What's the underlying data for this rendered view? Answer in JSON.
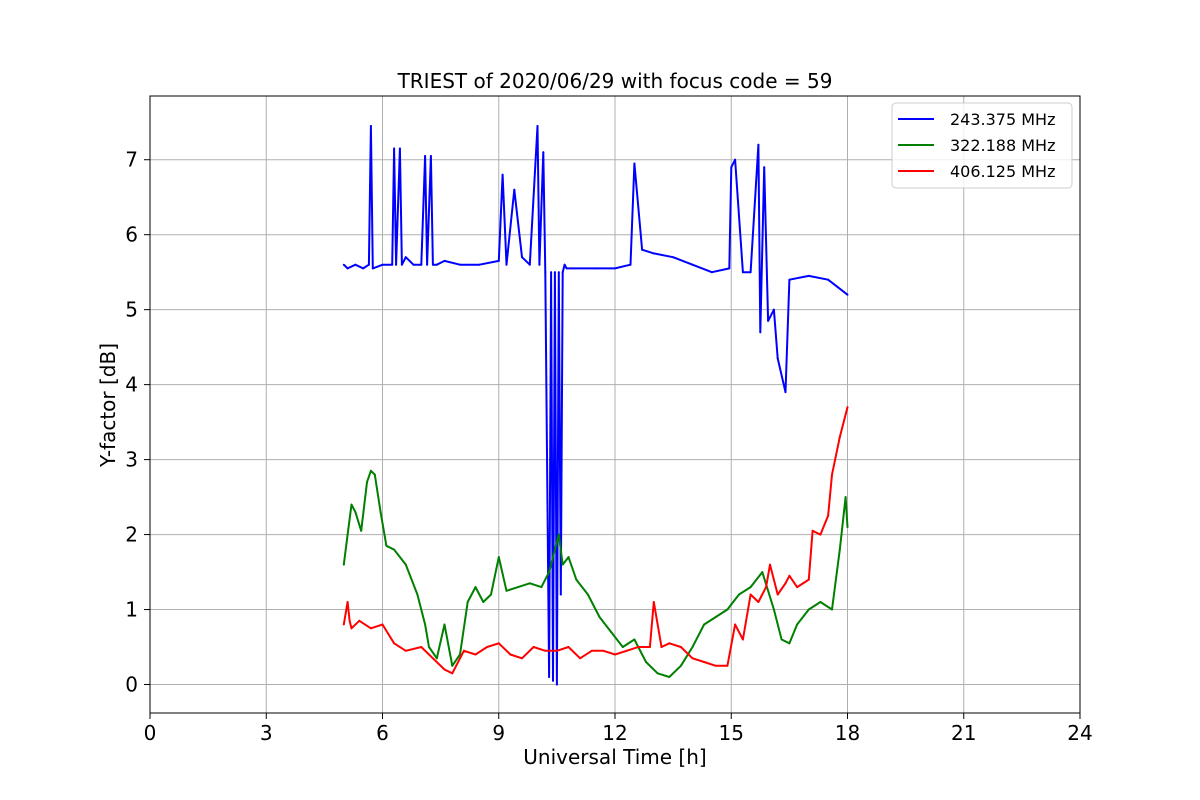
{
  "chart_data": {
    "type": "line",
    "title": "TRIEST of 2020/06/29 with focus code = 59",
    "xlabel": "Universal Time [h]",
    "ylabel": "Y-factor [dB]",
    "xlim": [
      0,
      24
    ],
    "ylim": [
      -0.38,
      7.85
    ],
    "xticks": [
      0,
      3,
      6,
      9,
      12,
      15,
      18,
      21,
      24
    ],
    "yticks": [
      0,
      1,
      2,
      3,
      4,
      5,
      6,
      7
    ],
    "grid": true,
    "legend_position": "top-right",
    "series": [
      {
        "name": "243.375 MHz",
        "color": "#0000ff",
        "x": [
          5.0,
          5.1,
          5.3,
          5.5,
          5.65,
          5.7,
          5.75,
          6.0,
          6.25,
          6.3,
          6.35,
          6.45,
          6.5,
          6.6,
          6.8,
          7.0,
          7.1,
          7.15,
          7.25,
          7.3,
          7.4,
          7.6,
          8.0,
          8.5,
          9.0,
          9.1,
          9.2,
          9.4,
          9.6,
          9.8,
          10.0,
          10.05,
          10.15,
          10.2,
          10.3,
          10.35,
          10.4,
          10.45,
          10.5,
          10.55,
          10.6,
          10.65,
          10.7,
          10.75,
          10.9,
          11.5,
          12.0,
          12.4,
          12.5,
          12.7,
          13.0,
          13.5,
          14.0,
          14.5,
          14.95,
          15.0,
          15.1,
          15.3,
          15.5,
          15.7,
          15.75,
          15.85,
          15.95,
          16.1,
          16.2,
          16.4,
          16.5,
          17.0,
          17.5,
          18.0
        ],
        "y": [
          5.6,
          5.55,
          5.6,
          5.55,
          5.6,
          7.45,
          5.55,
          5.6,
          5.6,
          7.15,
          5.6,
          7.15,
          5.6,
          5.7,
          5.6,
          5.6,
          7.05,
          5.6,
          7.05,
          5.6,
          5.6,
          5.65,
          5.6,
          5.6,
          5.65,
          6.8,
          5.6,
          6.6,
          5.7,
          5.6,
          7.45,
          5.6,
          7.1,
          5.5,
          0.1,
          5.5,
          0.05,
          5.5,
          0.0,
          5.5,
          1.2,
          5.5,
          5.6,
          5.55,
          5.55,
          5.55,
          5.55,
          5.6,
          6.95,
          5.8,
          5.75,
          5.7,
          5.6,
          5.5,
          5.55,
          6.9,
          7.0,
          5.5,
          5.5,
          7.2,
          4.7,
          6.9,
          4.85,
          5.0,
          4.35,
          3.9,
          5.4,
          5.45,
          5.4,
          5.2
        ]
      },
      {
        "name": "322.188 MHz",
        "color": "#008000",
        "x": [
          5.0,
          5.1,
          5.2,
          5.3,
          5.45,
          5.6,
          5.7,
          5.8,
          5.95,
          6.1,
          6.3,
          6.6,
          6.9,
          7.1,
          7.2,
          7.4,
          7.6,
          7.8,
          8.0,
          8.2,
          8.4,
          8.6,
          8.8,
          9.0,
          9.2,
          9.5,
          9.8,
          10.1,
          10.3,
          10.45,
          10.55,
          10.65,
          10.8,
          11.0,
          11.3,
          11.6,
          11.9,
          12.2,
          12.5,
          12.8,
          13.1,
          13.4,
          13.7,
          14.0,
          14.3,
          14.6,
          14.9,
          15.2,
          15.5,
          15.8,
          16.1,
          16.3,
          16.5,
          16.7,
          17.0,
          17.3,
          17.6,
          17.8,
          17.95,
          18.0
        ],
        "y": [
          1.6,
          2.0,
          2.4,
          2.3,
          2.05,
          2.7,
          2.85,
          2.8,
          2.3,
          1.85,
          1.8,
          1.6,
          1.2,
          0.8,
          0.5,
          0.35,
          0.8,
          0.25,
          0.4,
          1.1,
          1.3,
          1.1,
          1.2,
          1.7,
          1.25,
          1.3,
          1.35,
          1.3,
          1.5,
          1.8,
          2.0,
          1.6,
          1.7,
          1.4,
          1.2,
          0.9,
          0.7,
          0.5,
          0.6,
          0.3,
          0.15,
          0.1,
          0.25,
          0.5,
          0.8,
          0.9,
          1.0,
          1.2,
          1.3,
          1.5,
          1.0,
          0.6,
          0.55,
          0.8,
          1.0,
          1.1,
          1.0,
          1.8,
          2.5,
          2.1
        ]
      },
      {
        "name": "406.125 MHz",
        "color": "#ff0000",
        "x": [
          5.0,
          5.1,
          5.15,
          5.2,
          5.4,
          5.7,
          6.0,
          6.3,
          6.6,
          7.0,
          7.3,
          7.6,
          7.8,
          8.1,
          8.4,
          8.7,
          9.0,
          9.3,
          9.6,
          9.9,
          10.2,
          10.5,
          10.8,
          11.1,
          11.4,
          11.7,
          12.0,
          12.3,
          12.6,
          12.9,
          13.0,
          13.2,
          13.4,
          13.7,
          14.0,
          14.3,
          14.6,
          14.9,
          15.1,
          15.3,
          15.5,
          15.7,
          15.9,
          16.0,
          16.2,
          16.4,
          16.5,
          16.7,
          17.0,
          17.1,
          17.3,
          17.5,
          17.6,
          17.8,
          18.0
        ],
        "y": [
          0.8,
          1.1,
          0.85,
          0.75,
          0.85,
          0.75,
          0.8,
          0.55,
          0.45,
          0.5,
          0.35,
          0.2,
          0.15,
          0.45,
          0.4,
          0.5,
          0.55,
          0.4,
          0.35,
          0.5,
          0.45,
          0.45,
          0.5,
          0.35,
          0.45,
          0.45,
          0.4,
          0.45,
          0.5,
          0.5,
          1.1,
          0.5,
          0.55,
          0.5,
          0.35,
          0.3,
          0.25,
          0.25,
          0.8,
          0.6,
          1.2,
          1.1,
          1.3,
          1.6,
          1.2,
          1.35,
          1.45,
          1.3,
          1.4,
          2.05,
          2.0,
          2.25,
          2.8,
          3.3,
          3.7
        ]
      }
    ]
  }
}
